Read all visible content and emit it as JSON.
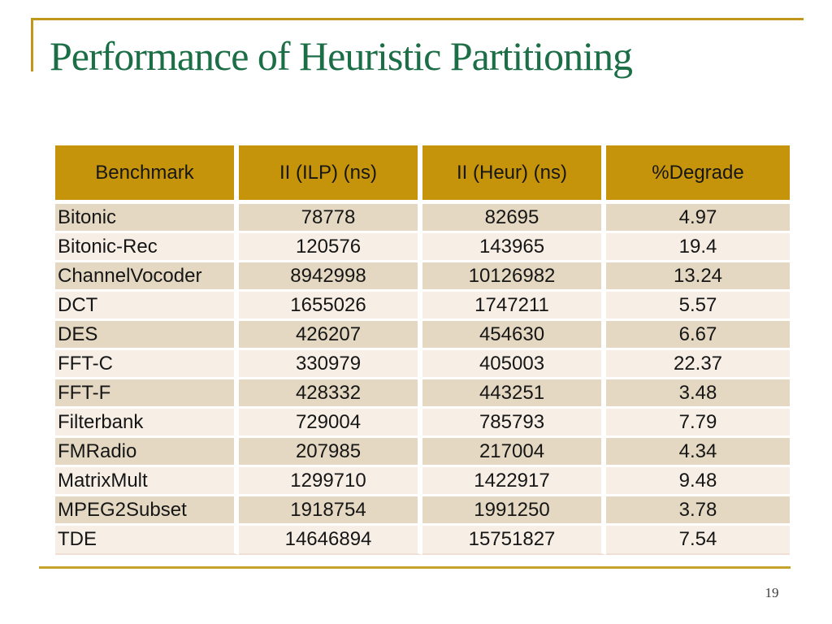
{
  "slide": {
    "title": "Performance of Heuristic Partitioning",
    "page_number": "19",
    "colors": {
      "title_green": "#1B6E46",
      "header_gold": "#C5940A",
      "accent_line_top": "#C0971B",
      "accent_line_bottom": "#C5A22B",
      "row_band_dark": "#E4D8C2",
      "row_band_light": "#F7EFE6",
      "table_text": "#161616"
    },
    "table": {
      "columns": [
        "Benchmark",
        "II (ILP) (ns)",
        "II (Heur) (ns)",
        "%Degrade"
      ],
      "rows": [
        [
          "Bitonic",
          "78778",
          "82695",
          "4.97"
        ],
        [
          "Bitonic-Rec",
          "120576",
          "143965",
          "19.4"
        ],
        [
          "ChannelVocoder",
          "8942998",
          "10126982",
          "13.24"
        ],
        [
          "DCT",
          "1655026",
          "1747211",
          "5.57"
        ],
        [
          "DES",
          "426207",
          "454630",
          "6.67"
        ],
        [
          "FFT-C",
          "330979",
          "405003",
          "22.37"
        ],
        [
          "FFT-F",
          "428332",
          "443251",
          "3.48"
        ],
        [
          "Filterbank",
          "729004",
          "785793",
          "7.79"
        ],
        [
          "FMRadio",
          "207985",
          "217004",
          "4.34"
        ],
        [
          "MatrixMult",
          "1299710",
          "1422917",
          "9.48"
        ],
        [
          "MPEG2Subset",
          "1918754",
          "1991250",
          "3.78"
        ],
        [
          "TDE",
          "14646894",
          "15751827",
          "7.54"
        ]
      ]
    }
  }
}
